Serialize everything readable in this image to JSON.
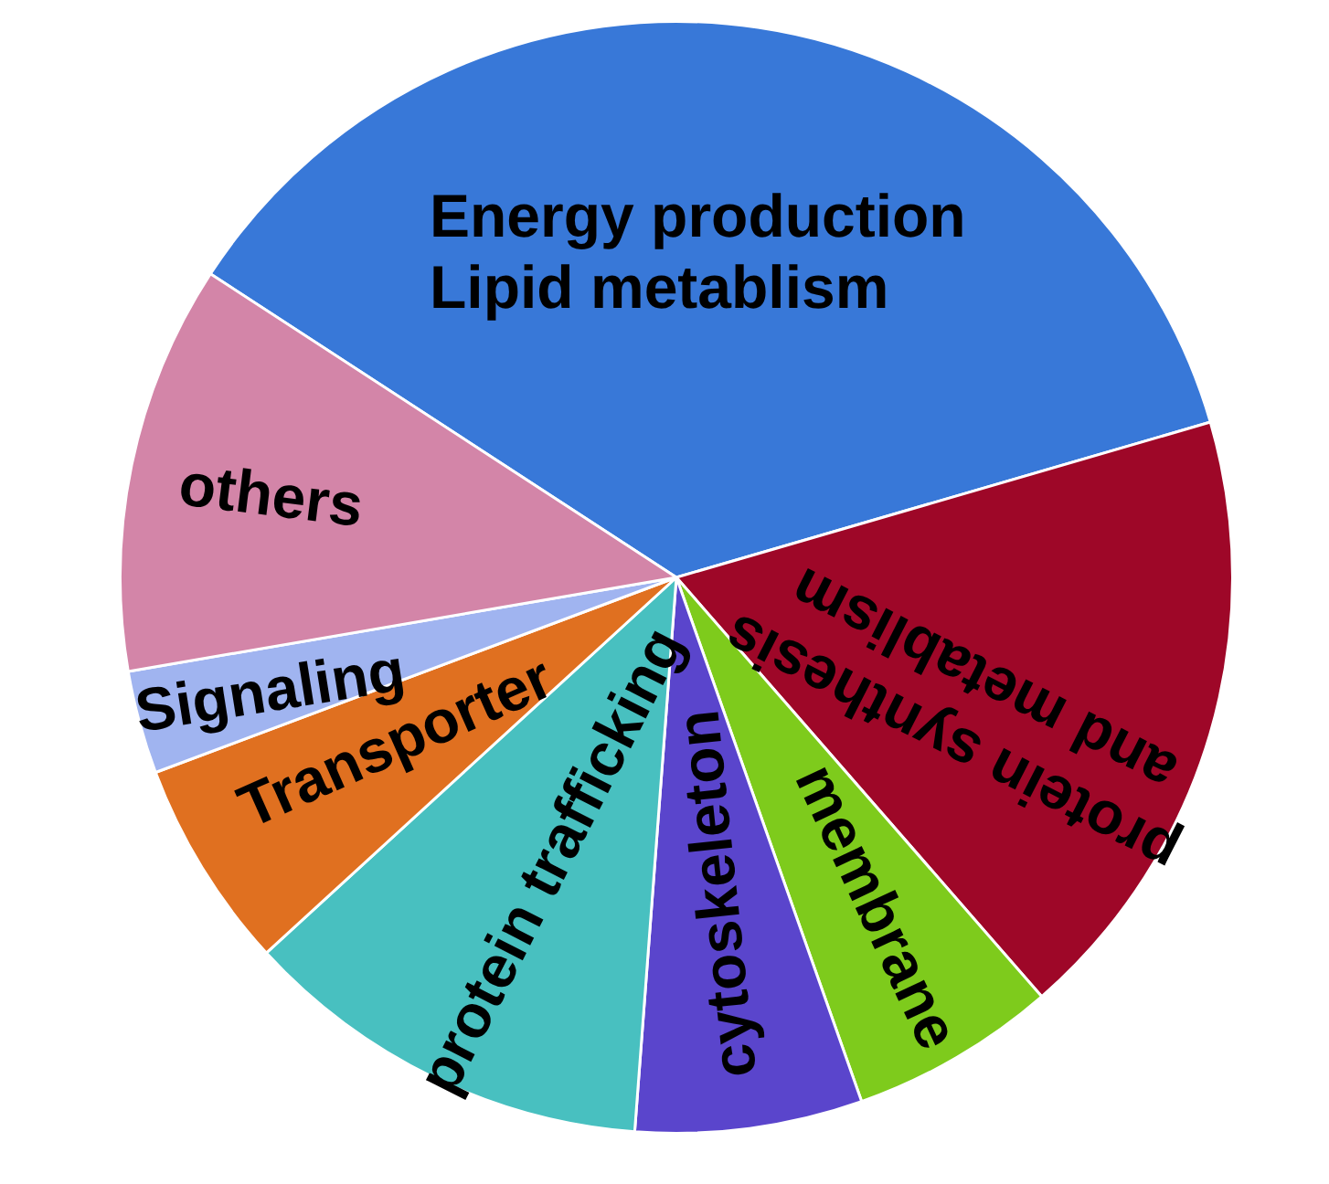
{
  "chart_data": {
    "type": "pie",
    "categories": [
      "Energy production\nLipid metablism",
      "protein synthesis\nand metablism",
      "membrane",
      "cytoskeleton",
      "protein trafficking",
      "Transporter",
      "Signaling",
      "others"
    ],
    "values": [
      36.3,
      18.1,
      6.0,
      6.6,
      12.0,
      6.1,
      3.0,
      11.9
    ],
    "colors": [
      "#3878d8",
      "#9e0728",
      "#7ecb1c",
      "#5a45cc",
      "#48c0c0",
      "#e07020",
      "#a0b4f0",
      "#d385a8"
    ]
  }
}
